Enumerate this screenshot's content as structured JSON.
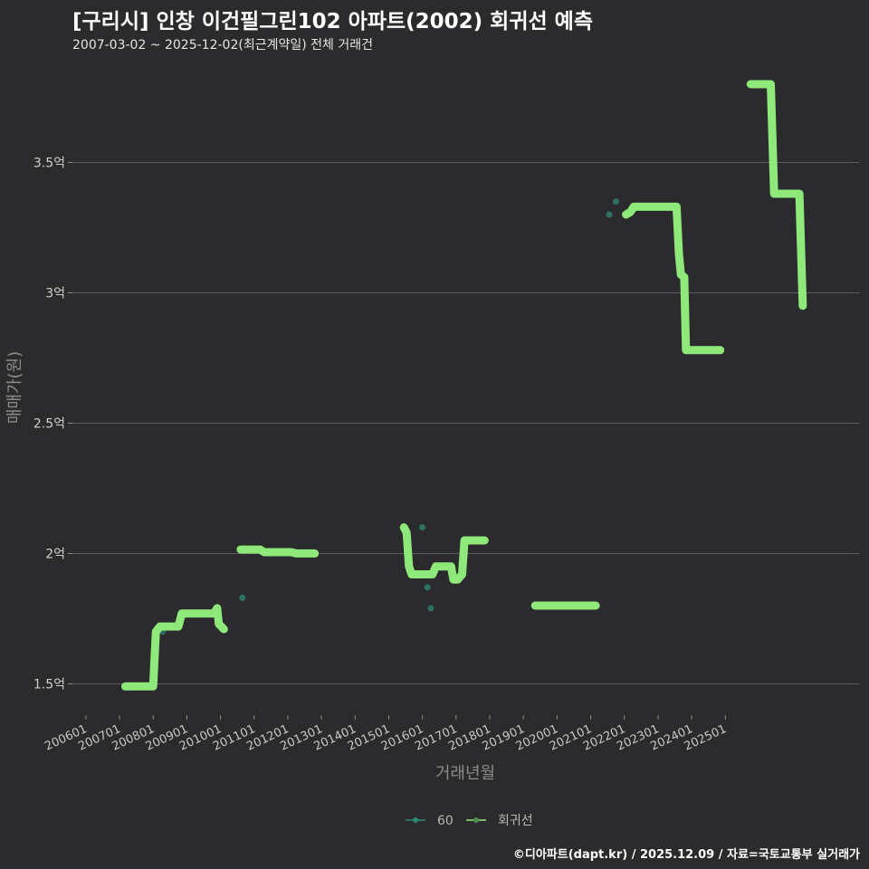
{
  "header": {
    "title": "[구리시] 인창 이건필그린102 아파트(2002) 회귀선 예측",
    "subtitle": "2007-03-02 ~ 2025-12-02(최근계약일) 전체 거래건"
  },
  "caption": "©디아파트(dapt.kr) / 2025.12.09 / 자료=국토교통부 실거래가",
  "colors": {
    "regression": "#8ee87a",
    "points": "#2e8b70",
    "grid": "#5a5a5c",
    "background": "#2b2b2d"
  },
  "chart_data": {
    "type": "line",
    "title": "[구리시] 인창 이건필그린102 아파트(2002) 회귀선 예측",
    "xlabel": "거래년월",
    "ylabel": "매매가(원)",
    "x_unit": "years (decimal)",
    "xlim": [
      2005.6,
      2029.0
    ],
    "ylim": [
      1.38,
      3.88
    ],
    "y_unit": "억",
    "y_ticks": [
      {
        "value": 1.5,
        "label": "1.5억"
      },
      {
        "value": 2.0,
        "label": "2억"
      },
      {
        "value": 2.5,
        "label": "2.5억"
      },
      {
        "value": 3.0,
        "label": "3억"
      },
      {
        "value": 3.5,
        "label": "3.5억"
      }
    ],
    "x_ticks": [
      {
        "value": 2006.0,
        "label": "200601"
      },
      {
        "value": 2007.0,
        "label": "200701"
      },
      {
        "value": 2008.0,
        "label": "200801"
      },
      {
        "value": 2009.0,
        "label": "200901"
      },
      {
        "value": 2010.0,
        "label": "201001"
      },
      {
        "value": 2011.0,
        "label": "201101"
      },
      {
        "value": 2012.0,
        "label": "201201"
      },
      {
        "value": 2013.0,
        "label": "201301"
      },
      {
        "value": 2014.0,
        "label": "201401"
      },
      {
        "value": 2015.0,
        "label": "201501"
      },
      {
        "value": 2016.0,
        "label": "201601"
      },
      {
        "value": 2017.0,
        "label": "201701"
      },
      {
        "value": 2018.0,
        "label": "201801"
      },
      {
        "value": 2019.0,
        "label": "201901"
      },
      {
        "value": 2020.0,
        "label": "202001"
      },
      {
        "value": 2021.0,
        "label": "202101"
      },
      {
        "value": 2022.0,
        "label": "202201"
      },
      {
        "value": 2023.0,
        "label": "202301"
      },
      {
        "value": 2024.0,
        "label": "202401"
      },
      {
        "value": 2025.0,
        "label": "202501"
      }
    ],
    "grid": true,
    "legend": {
      "position": "bottom",
      "items": [
        "60",
        "회귀선"
      ]
    },
    "series": [
      {
        "name": "60",
        "kind": "scatter",
        "points": [
          {
            "x": 2008.05,
            "y": 1.55
          },
          {
            "x": 2008.28,
            "y": 1.7
          },
          {
            "x": 2010.65,
            "y": 1.83
          },
          {
            "x": 2016.0,
            "y": 2.1
          },
          {
            "x": 2016.15,
            "y": 1.87
          },
          {
            "x": 2016.25,
            "y": 1.79
          },
          {
            "x": 2021.55,
            "y": 3.3
          },
          {
            "x": 2021.75,
            "y": 3.35
          }
        ]
      },
      {
        "name": "회귀선",
        "kind": "line",
        "segments": [
          [
            [
              2007.17,
              1.49
            ],
            [
              2008.0,
              1.49
            ],
            [
              2008.08,
              1.7
            ],
            [
              2008.2,
              1.72
            ],
            [
              2008.75,
              1.72
            ],
            [
              2008.85,
              1.77
            ],
            [
              2009.8,
              1.77
            ],
            [
              2009.9,
              1.79
            ],
            [
              2009.95,
              1.73
            ],
            [
              2010.1,
              1.71
            ]
          ],
          [
            [
              2010.6,
              2.015
            ],
            [
              2011.18,
              2.015
            ],
            [
              2011.3,
              2.005
            ],
            [
              2012.1,
              2.005
            ],
            [
              2012.25,
              2.0
            ],
            [
              2012.8,
              2.0
            ]
          ],
          [
            [
              2015.45,
              2.1
            ],
            [
              2015.53,
              2.08
            ],
            [
              2015.6,
              1.95
            ],
            [
              2015.68,
              1.92
            ],
            [
              2016.3,
              1.92
            ],
            [
              2016.4,
              1.95
            ],
            [
              2016.85,
              1.95
            ],
            [
              2016.92,
              1.9
            ],
            [
              2017.05,
              1.9
            ],
            [
              2017.18,
              1.92
            ],
            [
              2017.25,
              2.05
            ],
            [
              2017.6,
              2.05
            ],
            [
              2017.85,
              2.05
            ]
          ],
          [
            [
              2019.35,
              1.8
            ],
            [
              2021.15,
              1.8
            ]
          ],
          [
            [
              2022.05,
              3.3
            ],
            [
              2022.18,
              3.31
            ],
            [
              2022.28,
              3.33
            ],
            [
              2023.55,
              3.33
            ],
            [
              2023.62,
              3.15
            ],
            [
              2023.68,
              3.07
            ],
            [
              2023.78,
              3.06
            ],
            [
              2023.83,
              2.78
            ],
            [
              2024.85,
              2.78
            ]
          ],
          [
            [
              2025.75,
              3.8
            ],
            [
              2026.35,
              3.8
            ],
            [
              2026.45,
              3.38
            ],
            [
              2027.2,
              3.38
            ],
            [
              2027.3,
              2.95
            ]
          ]
        ]
      }
    ]
  }
}
